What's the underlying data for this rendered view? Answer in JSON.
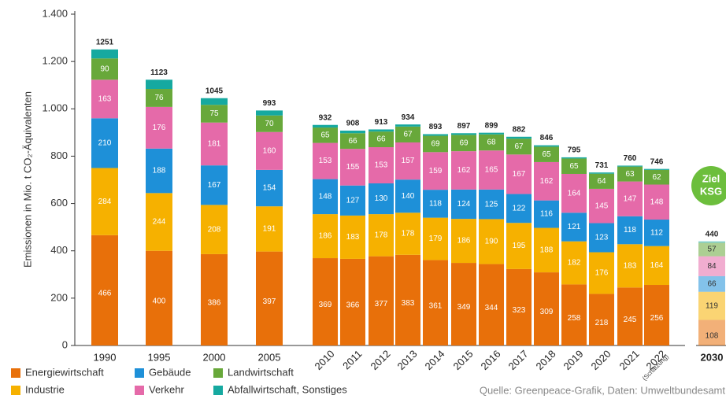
{
  "chart_data": {
    "type": "stacked_bar",
    "y_label": "Emissionen in Mio. t CO₂-Äquivalenten",
    "categories": [
      "1990",
      "1995",
      "2000",
      "2005",
      "2010",
      "2011",
      "2012",
      "2013",
      "2014",
      "2015",
      "2016",
      "2017",
      "2018",
      "2019",
      "2020",
      "2021",
      "2022",
      "2030"
    ],
    "category_note": "(Schätzung)",
    "badge": [
      "Ziel",
      "KSG"
    ],
    "totals": [
      1251,
      1123,
      1045,
      993,
      932,
      908,
      913,
      934,
      893,
      897,
      899,
      882,
      846,
      795,
      731,
      760,
      746,
      440
    ],
    "series": [
      {
        "name": "Energiewirtschaft",
        "color": "#e8700a",
        "values": [
          466,
          400,
          386,
          397,
          369,
          366,
          377,
          383,
          361,
          349,
          344,
          323,
          309,
          258,
          218,
          245,
          256,
          108
        ]
      },
      {
        "name": "Industrie",
        "color": "#f6b100",
        "values": [
          284,
          244,
          208,
          191,
          186,
          183,
          178,
          178,
          179,
          186,
          190,
          195,
          188,
          182,
          176,
          183,
          164,
          119
        ]
      },
      {
        "name": "Gebäude",
        "color": "#1e90d8",
        "values": [
          210,
          188,
          167,
          154,
          148,
          127,
          130,
          140,
          118,
          124,
          125,
          122,
          116,
          121,
          123,
          118,
          112,
          66
        ]
      },
      {
        "name": "Verkehr",
        "color": "#e56aa9",
        "values": [
          163,
          176,
          181,
          160,
          153,
          155,
          153,
          157,
          159,
          162,
          165,
          167,
          162,
          164,
          145,
          147,
          148,
          84
        ]
      },
      {
        "name": "Landwirtschaft",
        "color": "#68a83a",
        "values": [
          90,
          76,
          75,
          70,
          65,
          66,
          66,
          67,
          69,
          69,
          68,
          67,
          65,
          65,
          64,
          63,
          62,
          57
        ]
      },
      {
        "name": "Abfallwirtschaft, Sonstiges",
        "color": "#16a9a0",
        "values": [
          38,
          39,
          28,
          21,
          11,
          11,
          9,
          9,
          7,
          7,
          7,
          8,
          6,
          5,
          5,
          4,
          4,
          6
        ]
      }
    ],
    "ylim": [
      0,
      1400
    ],
    "yticks": [
      0,
      200,
      400,
      600,
      800,
      {
        "value": 1000,
        "label": "1.000"
      },
      {
        "value": 1200,
        "label": "1.200"
      },
      {
        "value": 1400,
        "label": "1.400"
      }
    ],
    "source": "Quelle: Greenpeace-Grafik, Daten: Umweltbundesamt"
  }
}
